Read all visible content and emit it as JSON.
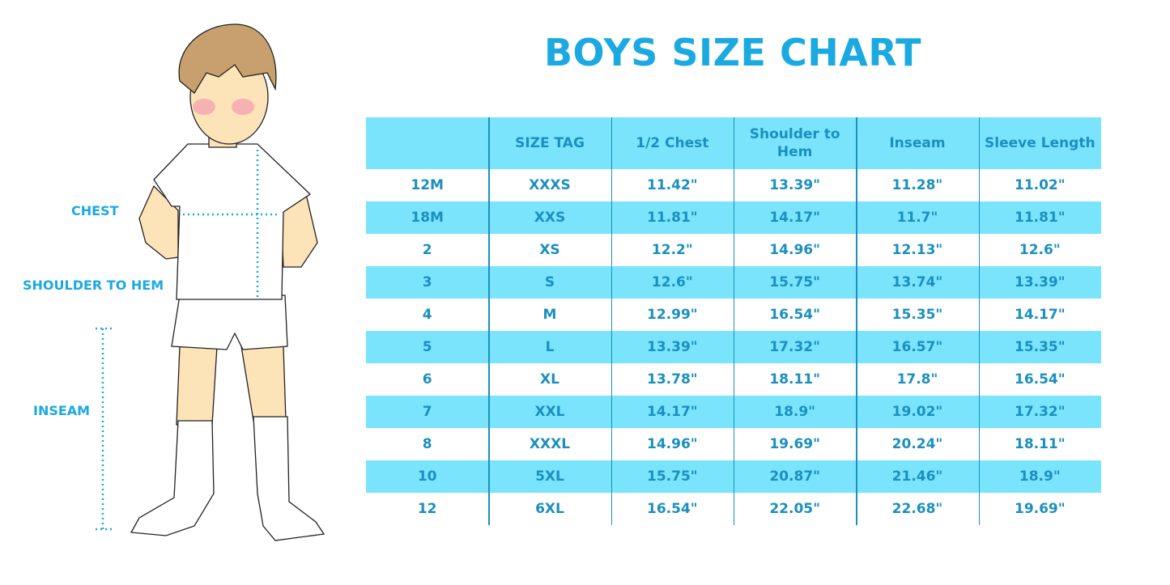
{
  "title": "BOYS SIZE CHART",
  "measure_labels": {
    "chest": "CHEST",
    "shoulder_to_hem": "SHOULDER TO HEM",
    "inseam": "INSEAM"
  },
  "colors": {
    "title": "#1ba9e1",
    "header_bg": "#7ae4fd",
    "text": "#1b8fbf",
    "alt_row_bg": "#7ae4fd"
  },
  "table": {
    "headers": [
      "",
      "SIZE TAG",
      "1/2 Chest",
      "Shoulder to Hem",
      "Inseam",
      "Sleeve Length"
    ],
    "rows": [
      [
        "12M",
        "XXXS",
        "11.42\"",
        "13.39\"",
        "11.28\"",
        "11.02\""
      ],
      [
        "18M",
        "XXS",
        "11.81\"",
        "14.17\"",
        "11.7\"",
        "11.81\""
      ],
      [
        "2",
        "XS",
        "12.2\"",
        "14.96\"",
        "12.13\"",
        "12.6\""
      ],
      [
        "3",
        "S",
        "12.6\"",
        "15.75\"",
        "13.74\"",
        "13.39\""
      ],
      [
        "4",
        "M",
        "12.99\"",
        "16.54\"",
        "15.35\"",
        "14.17\""
      ],
      [
        "5",
        "L",
        "13.39\"",
        "17.32\"",
        "16.57\"",
        "15.35\""
      ],
      [
        "6",
        "XL",
        "13.78\"",
        "18.11\"",
        "17.8\"",
        "16.54\""
      ],
      [
        "7",
        "XXL",
        "14.17\"",
        "18.9\"",
        "19.02\"",
        "17.32\""
      ],
      [
        "8",
        "XXXL",
        "14.96\"",
        "19.69\"",
        "20.24\"",
        "18.11\""
      ],
      [
        "10",
        "5XL",
        "15.75\"",
        "20.87\"",
        "21.46\"",
        "18.9\""
      ],
      [
        "12",
        "6XL",
        "16.54\"",
        "22.05\"",
        "22.68\"",
        "19.69\""
      ]
    ]
  }
}
